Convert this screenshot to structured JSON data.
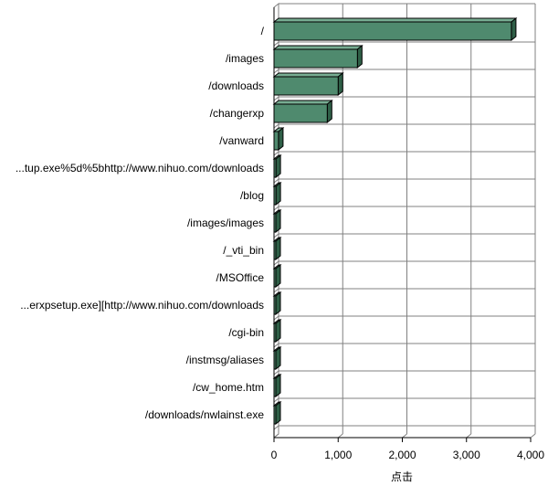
{
  "chart_data": {
    "type": "bar",
    "orientation": "horizontal",
    "style": "3d",
    "categories": [
      "/",
      "/images",
      "/downloads",
      "/changerxp",
      "/vanward",
      "...tup.exe%5d%5bhttp://www.nihuo.com/downloads",
      "/blog",
      "/images/images",
      "/_vti_bin",
      "/MSOffice",
      "...erxpsetup.exe][http://www.nihuo.com/downloads",
      "/cgi-bin",
      "/instmsg/aliases",
      "/cw_home.htm",
      "/downloads/nwlainst.exe"
    ],
    "values": [
      3700,
      1300,
      1000,
      830,
      70,
      30,
      30,
      20,
      20,
      20,
      20,
      20,
      20,
      20,
      20
    ],
    "xlabel": "点击",
    "ylabel": "",
    "xlim": [
      0,
      4000
    ],
    "xticks": [
      "0",
      "1,000",
      "2,000",
      "3,000",
      "4,000"
    ],
    "grid": true,
    "legend": "none",
    "colors": {
      "bar_front": "#4f8a6e",
      "bar_top": "#77ad92",
      "bar_side": "#2f5f47",
      "grid": "#808080",
      "axis": "#000000"
    }
  }
}
